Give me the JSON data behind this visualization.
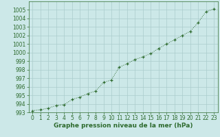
{
  "x": [
    0,
    1,
    2,
    3,
    4,
    5,
    6,
    7,
    8,
    9,
    10,
    11,
    12,
    13,
    14,
    15,
    16,
    17,
    18,
    19,
    20,
    21,
    22,
    23
  ],
  "y": [
    993.2,
    993.3,
    993.5,
    993.8,
    993.9,
    994.5,
    994.8,
    995.2,
    995.5,
    996.5,
    996.8,
    998.3,
    998.7,
    999.2,
    999.5,
    999.9,
    1000.5,
    1001.0,
    1001.5,
    1002.0,
    1002.5,
    1003.5,
    1004.8,
    1005.1
  ],
  "line_color": "#2d6a2d",
  "marker_color": "#2d6a2d",
  "bg_color": "#cce8e8",
  "grid_color": "#aacccc",
  "xlabel": "Graphe pression niveau de la mer (hPa)",
  "ylim": [
    993,
    1006
  ],
  "xlim_min": -0.5,
  "xlim_max": 23.5,
  "yticks": [
    993,
    994,
    995,
    996,
    997,
    998,
    999,
    1000,
    1001,
    1002,
    1003,
    1004,
    1005
  ],
  "xticks": [
    0,
    1,
    2,
    3,
    4,
    5,
    6,
    7,
    8,
    9,
    10,
    11,
    12,
    13,
    14,
    15,
    16,
    17,
    18,
    19,
    20,
    21,
    22,
    23
  ],
  "xlabel_fontsize": 6.5,
  "tick_fontsize": 5.5
}
